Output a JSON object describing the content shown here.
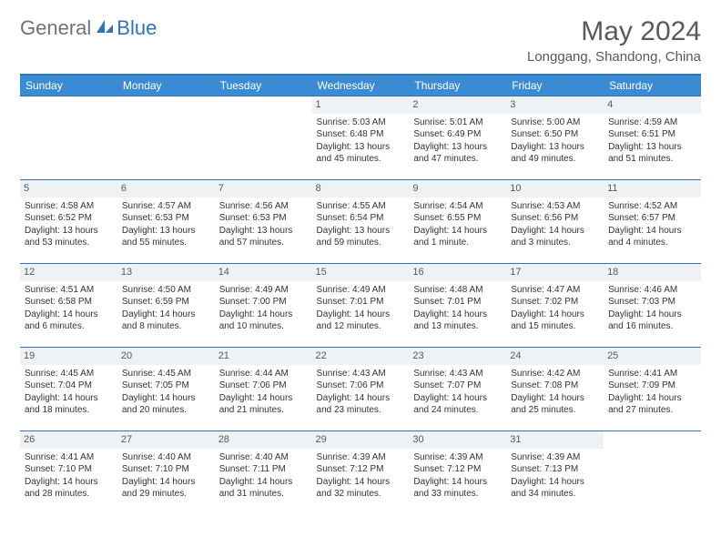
{
  "brand": {
    "general": "General",
    "blue": "Blue"
  },
  "title": "May 2024",
  "location": "Longgang, Shandong, China",
  "colors": {
    "header_bg": "#3b8bd4",
    "border": "#2f75b5",
    "daynum_bg": "#eef2f5",
    "text": "#333333",
    "muted": "#595959"
  },
  "weekdays": [
    "Sunday",
    "Monday",
    "Tuesday",
    "Wednesday",
    "Thursday",
    "Friday",
    "Saturday"
  ],
  "weeks": [
    [
      {
        "n": "",
        "sr": "",
        "ss": "",
        "d1": "",
        "d2": ""
      },
      {
        "n": "",
        "sr": "",
        "ss": "",
        "d1": "",
        "d2": ""
      },
      {
        "n": "",
        "sr": "",
        "ss": "",
        "d1": "",
        "d2": ""
      },
      {
        "n": "1",
        "sr": "Sunrise: 5:03 AM",
        "ss": "Sunset: 6:48 PM",
        "d1": "Daylight: 13 hours",
        "d2": "and 45 minutes."
      },
      {
        "n": "2",
        "sr": "Sunrise: 5:01 AM",
        "ss": "Sunset: 6:49 PM",
        "d1": "Daylight: 13 hours",
        "d2": "and 47 minutes."
      },
      {
        "n": "3",
        "sr": "Sunrise: 5:00 AM",
        "ss": "Sunset: 6:50 PM",
        "d1": "Daylight: 13 hours",
        "d2": "and 49 minutes."
      },
      {
        "n": "4",
        "sr": "Sunrise: 4:59 AM",
        "ss": "Sunset: 6:51 PM",
        "d1": "Daylight: 13 hours",
        "d2": "and 51 minutes."
      }
    ],
    [
      {
        "n": "5",
        "sr": "Sunrise: 4:58 AM",
        "ss": "Sunset: 6:52 PM",
        "d1": "Daylight: 13 hours",
        "d2": "and 53 minutes."
      },
      {
        "n": "6",
        "sr": "Sunrise: 4:57 AM",
        "ss": "Sunset: 6:53 PM",
        "d1": "Daylight: 13 hours",
        "d2": "and 55 minutes."
      },
      {
        "n": "7",
        "sr": "Sunrise: 4:56 AM",
        "ss": "Sunset: 6:53 PM",
        "d1": "Daylight: 13 hours",
        "d2": "and 57 minutes."
      },
      {
        "n": "8",
        "sr": "Sunrise: 4:55 AM",
        "ss": "Sunset: 6:54 PM",
        "d1": "Daylight: 13 hours",
        "d2": "and 59 minutes."
      },
      {
        "n": "9",
        "sr": "Sunrise: 4:54 AM",
        "ss": "Sunset: 6:55 PM",
        "d1": "Daylight: 14 hours",
        "d2": "and 1 minute."
      },
      {
        "n": "10",
        "sr": "Sunrise: 4:53 AM",
        "ss": "Sunset: 6:56 PM",
        "d1": "Daylight: 14 hours",
        "d2": "and 3 minutes."
      },
      {
        "n": "11",
        "sr": "Sunrise: 4:52 AM",
        "ss": "Sunset: 6:57 PM",
        "d1": "Daylight: 14 hours",
        "d2": "and 4 minutes."
      }
    ],
    [
      {
        "n": "12",
        "sr": "Sunrise: 4:51 AM",
        "ss": "Sunset: 6:58 PM",
        "d1": "Daylight: 14 hours",
        "d2": "and 6 minutes."
      },
      {
        "n": "13",
        "sr": "Sunrise: 4:50 AM",
        "ss": "Sunset: 6:59 PM",
        "d1": "Daylight: 14 hours",
        "d2": "and 8 minutes."
      },
      {
        "n": "14",
        "sr": "Sunrise: 4:49 AM",
        "ss": "Sunset: 7:00 PM",
        "d1": "Daylight: 14 hours",
        "d2": "and 10 minutes."
      },
      {
        "n": "15",
        "sr": "Sunrise: 4:49 AM",
        "ss": "Sunset: 7:01 PM",
        "d1": "Daylight: 14 hours",
        "d2": "and 12 minutes."
      },
      {
        "n": "16",
        "sr": "Sunrise: 4:48 AM",
        "ss": "Sunset: 7:01 PM",
        "d1": "Daylight: 14 hours",
        "d2": "and 13 minutes."
      },
      {
        "n": "17",
        "sr": "Sunrise: 4:47 AM",
        "ss": "Sunset: 7:02 PM",
        "d1": "Daylight: 14 hours",
        "d2": "and 15 minutes."
      },
      {
        "n": "18",
        "sr": "Sunrise: 4:46 AM",
        "ss": "Sunset: 7:03 PM",
        "d1": "Daylight: 14 hours",
        "d2": "and 16 minutes."
      }
    ],
    [
      {
        "n": "19",
        "sr": "Sunrise: 4:45 AM",
        "ss": "Sunset: 7:04 PM",
        "d1": "Daylight: 14 hours",
        "d2": "and 18 minutes."
      },
      {
        "n": "20",
        "sr": "Sunrise: 4:45 AM",
        "ss": "Sunset: 7:05 PM",
        "d1": "Daylight: 14 hours",
        "d2": "and 20 minutes."
      },
      {
        "n": "21",
        "sr": "Sunrise: 4:44 AM",
        "ss": "Sunset: 7:06 PM",
        "d1": "Daylight: 14 hours",
        "d2": "and 21 minutes."
      },
      {
        "n": "22",
        "sr": "Sunrise: 4:43 AM",
        "ss": "Sunset: 7:06 PM",
        "d1": "Daylight: 14 hours",
        "d2": "and 23 minutes."
      },
      {
        "n": "23",
        "sr": "Sunrise: 4:43 AM",
        "ss": "Sunset: 7:07 PM",
        "d1": "Daylight: 14 hours",
        "d2": "and 24 minutes."
      },
      {
        "n": "24",
        "sr": "Sunrise: 4:42 AM",
        "ss": "Sunset: 7:08 PM",
        "d1": "Daylight: 14 hours",
        "d2": "and 25 minutes."
      },
      {
        "n": "25",
        "sr": "Sunrise: 4:41 AM",
        "ss": "Sunset: 7:09 PM",
        "d1": "Daylight: 14 hours",
        "d2": "and 27 minutes."
      }
    ],
    [
      {
        "n": "26",
        "sr": "Sunrise: 4:41 AM",
        "ss": "Sunset: 7:10 PM",
        "d1": "Daylight: 14 hours",
        "d2": "and 28 minutes."
      },
      {
        "n": "27",
        "sr": "Sunrise: 4:40 AM",
        "ss": "Sunset: 7:10 PM",
        "d1": "Daylight: 14 hours",
        "d2": "and 29 minutes."
      },
      {
        "n": "28",
        "sr": "Sunrise: 4:40 AM",
        "ss": "Sunset: 7:11 PM",
        "d1": "Daylight: 14 hours",
        "d2": "and 31 minutes."
      },
      {
        "n": "29",
        "sr": "Sunrise: 4:39 AM",
        "ss": "Sunset: 7:12 PM",
        "d1": "Daylight: 14 hours",
        "d2": "and 32 minutes."
      },
      {
        "n": "30",
        "sr": "Sunrise: 4:39 AM",
        "ss": "Sunset: 7:12 PM",
        "d1": "Daylight: 14 hours",
        "d2": "and 33 minutes."
      },
      {
        "n": "31",
        "sr": "Sunrise: 4:39 AM",
        "ss": "Sunset: 7:13 PM",
        "d1": "Daylight: 14 hours",
        "d2": "and 34 minutes."
      },
      {
        "n": "",
        "sr": "",
        "ss": "",
        "d1": "",
        "d2": ""
      }
    ]
  ]
}
